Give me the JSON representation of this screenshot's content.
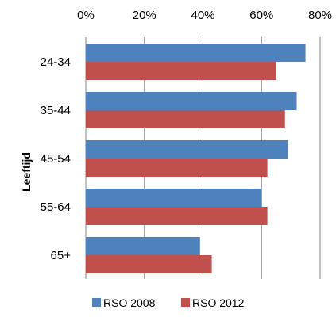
{
  "chart_data": {
    "type": "bar",
    "orientation": "horizontal",
    "title": "",
    "ylabel": "Leeftijd",
    "xlabel": "",
    "categories": [
      "24-34",
      "35-44",
      "45-54",
      "55-64",
      "65+"
    ],
    "x_ticks": [
      "0%",
      "20%",
      "40%",
      "60%",
      "80%"
    ],
    "xlim": [
      0,
      80
    ],
    "x_axis_position": "top",
    "grid": "vertical",
    "legend_position": "bottom",
    "series": [
      {
        "name": "RSO 2008",
        "color": "#4F81BD",
        "values": [
          75,
          72,
          69,
          60,
          39
        ]
      },
      {
        "name": "RSO 2012",
        "color": "#C0504D",
        "values": [
          65,
          68,
          62,
          62,
          43
        ]
      }
    ]
  }
}
